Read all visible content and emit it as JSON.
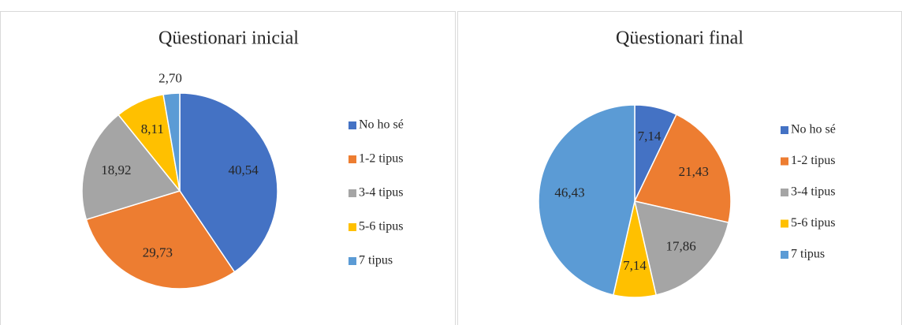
{
  "chart_data": [
    {
      "type": "pie",
      "title": "Qüestionari inicial",
      "categories": [
        "No ho sé",
        "1-2 tipus",
        "3-4 tipus",
        "5-6 tipus",
        "7 tipus"
      ],
      "values": [
        40.54,
        29.73,
        18.92,
        8.11,
        2.7
      ],
      "value_labels": [
        "40,54",
        "29,73",
        "18,92",
        "8,11",
        "2,70"
      ],
      "colors": [
        "#4472c4",
        "#ed7d31",
        "#a5a5a5",
        "#ffc000",
        "#5b9bd5"
      ],
      "legend": "right"
    },
    {
      "type": "pie",
      "title": "Qüestionari final",
      "categories": [
        "No ho sé",
        "1-2 tipus",
        "3-4 tipus",
        "5-6 tipus",
        "7 tipus"
      ],
      "values": [
        7.14,
        21.43,
        17.86,
        7.14,
        46.43
      ],
      "value_labels": [
        "7,14",
        "21,43",
        "17,86",
        "7,14",
        "46,43"
      ],
      "colors": [
        "#4472c4",
        "#ed7d31",
        "#a5a5a5",
        "#ffc000",
        "#5b9bd5"
      ],
      "legend": "right"
    }
  ]
}
